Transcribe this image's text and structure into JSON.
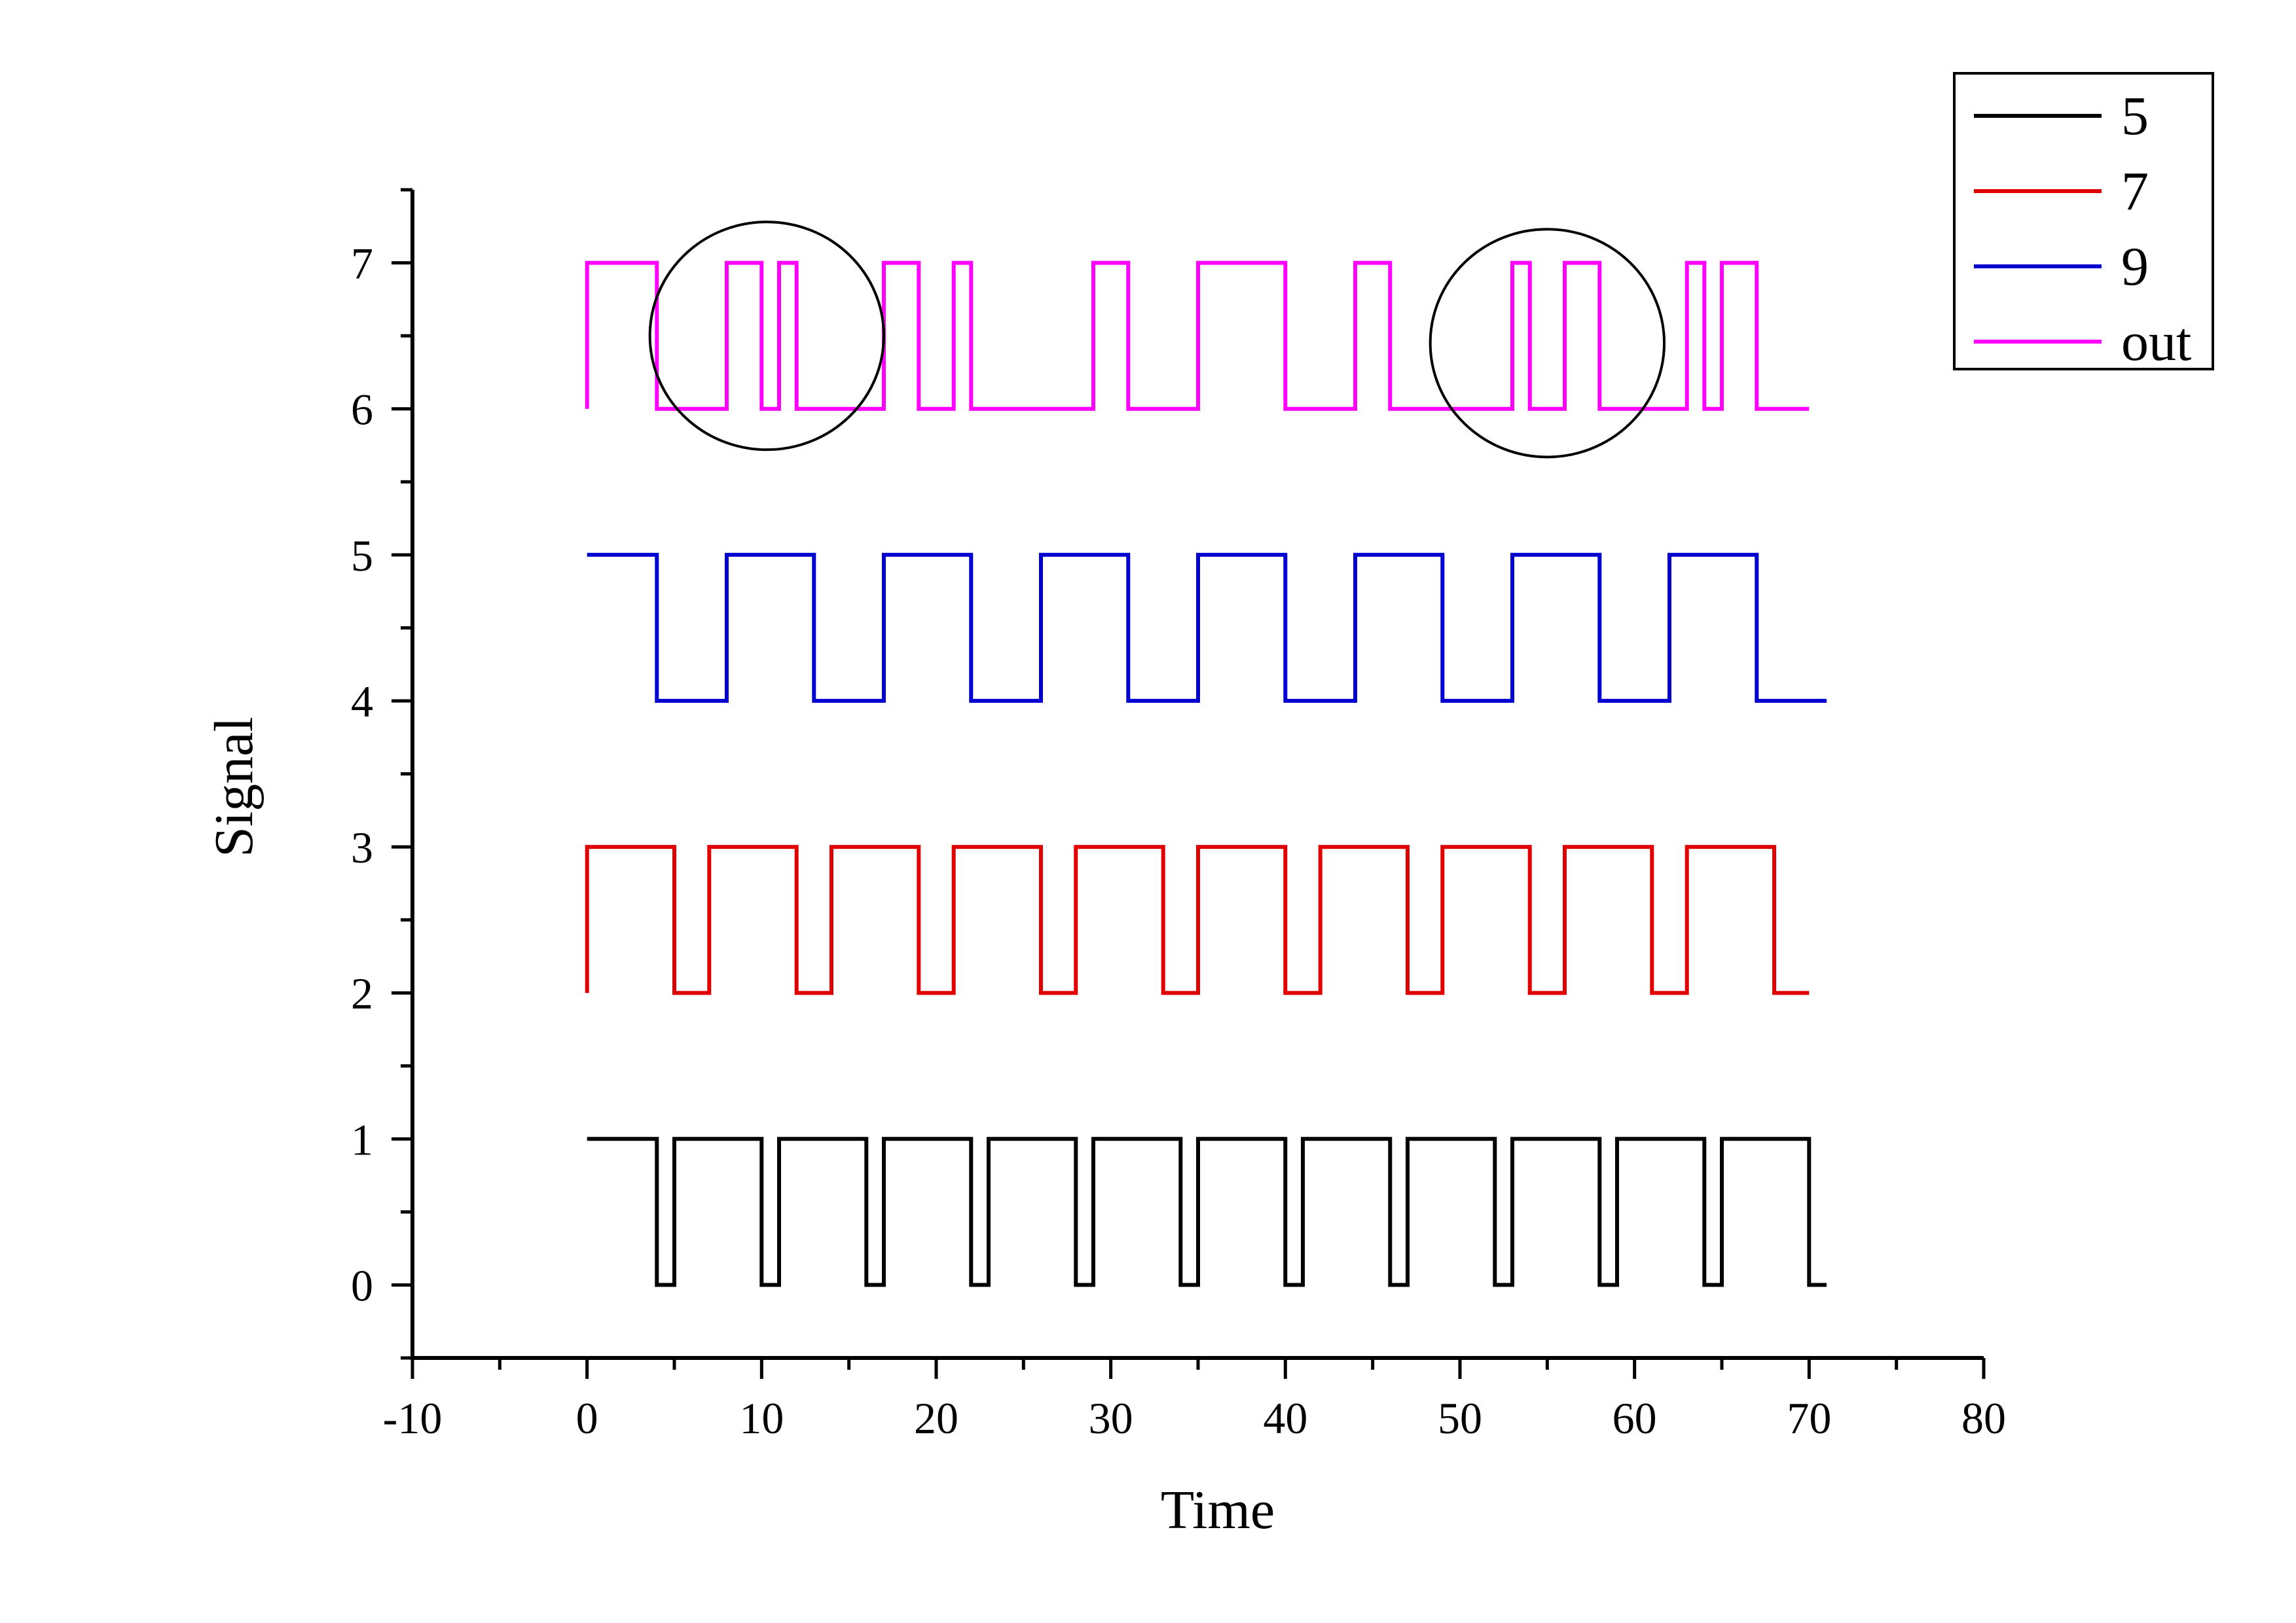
{
  "chart_data": {
    "type": "line",
    "step": true,
    "xlabel": "Time",
    "ylabel": "Signal",
    "xlim": [
      -10,
      80
    ],
    "ylim": [
      -0.5,
      7.5
    ],
    "xticks": [
      -10,
      0,
      10,
      20,
      30,
      40,
      50,
      60,
      70,
      80
    ],
    "xtick_labels": [
      "-10",
      "0",
      "10",
      "20",
      "30",
      "40",
      "50",
      "60",
      "70",
      "80"
    ],
    "yticks": [
      0,
      1,
      2,
      3,
      4,
      5,
      6,
      7
    ],
    "ytick_labels": [
      "0",
      "1",
      "2",
      "3",
      "4",
      "5",
      "6",
      "7"
    ],
    "legend_position": "top-right",
    "series": [
      {
        "name": "5",
        "color": "#000000",
        "x": [
          0,
          4,
          4,
          5,
          5,
          10,
          10,
          11,
          11,
          16,
          16,
          17,
          17,
          22,
          22,
          23,
          23,
          28,
          28,
          29,
          29,
          34,
          34,
          35,
          35,
          40,
          40,
          41,
          41,
          46,
          46,
          47,
          47,
          52,
          52,
          53,
          53,
          58,
          58,
          59,
          59,
          64,
          64,
          65,
          65,
          70,
          70,
          71
        ],
        "y": [
          1,
          1,
          0,
          0,
          1,
          1,
          0,
          0,
          1,
          1,
          0,
          0,
          1,
          1,
          0,
          0,
          1,
          1,
          0,
          0,
          1,
          1,
          0,
          0,
          1,
          1,
          0,
          0,
          1,
          1,
          0,
          0,
          1,
          1,
          0,
          0,
          1,
          1,
          0,
          0,
          1,
          1,
          0,
          0,
          1,
          1,
          0,
          0
        ]
      },
      {
        "name": "7",
        "color": "#e00000",
        "x": [
          0,
          0,
          5,
          5,
          7,
          7,
          12,
          12,
          14,
          14,
          19,
          19,
          21,
          21,
          26,
          26,
          28,
          28,
          33,
          33,
          35,
          35,
          40,
          40,
          42,
          42,
          47,
          47,
          49,
          49,
          54,
          54,
          56,
          56,
          61,
          61,
          63,
          63,
          68,
          68,
          70
        ],
        "y": [
          2,
          3,
          3,
          2,
          2,
          3,
          3,
          2,
          2,
          3,
          3,
          2,
          2,
          3,
          3,
          2,
          2,
          3,
          3,
          2,
          2,
          3,
          3,
          2,
          2,
          3,
          3,
          2,
          2,
          3,
          3,
          2,
          2,
          3,
          3,
          2,
          2,
          3,
          3,
          2,
          2
        ]
      },
      {
        "name": "9",
        "color": "#0000d0",
        "x": [
          0,
          4,
          4,
          8,
          8,
          13,
          13,
          17,
          17,
          22,
          22,
          26,
          26,
          31,
          31,
          35,
          35,
          40,
          40,
          44,
          44,
          49,
          49,
          53,
          53,
          58,
          58,
          62,
          62,
          67,
          67,
          71
        ],
        "y": [
          5,
          5,
          4,
          4,
          5,
          5,
          4,
          4,
          5,
          5,
          4,
          4,
          5,
          5,
          4,
          4,
          5,
          5,
          4,
          4,
          5,
          5,
          4,
          4,
          5,
          5,
          4,
          4,
          5,
          5,
          4,
          4
        ]
      },
      {
        "name": "out",
        "color": "#ff00ff",
        "x": [
          0,
          0,
          4,
          4,
          8,
          8,
          10,
          10,
          11,
          11,
          12,
          12,
          17,
          17,
          19,
          19,
          21,
          21,
          22,
          22,
          29,
          29,
          31,
          31,
          35,
          35,
          40,
          40,
          44,
          44,
          46,
          46,
          53,
          53,
          54,
          54,
          56,
          56,
          58,
          58,
          63,
          63,
          64,
          64,
          65,
          65,
          67,
          67,
          70
        ],
        "y": [
          6,
          7,
          7,
          6,
          6,
          7,
          7,
          6,
          6,
          7,
          7,
          6,
          6,
          7,
          7,
          6,
          6,
          7,
          7,
          6,
          6,
          7,
          7,
          6,
          6,
          7,
          7,
          6,
          6,
          7,
          7,
          6,
          6,
          7,
          7,
          6,
          6,
          7,
          7,
          6,
          6,
          7,
          7,
          6,
          6,
          7,
          7,
          6,
          6
        ]
      }
    ],
    "annotations": [
      {
        "type": "circle",
        "center": [
          10.3,
          6.5
        ],
        "radius_x": 6.7,
        "radius_y": 0.78,
        "color": "#000000"
      },
      {
        "type": "circle",
        "center": [
          55,
          6.45
        ],
        "radius_x": 6.7,
        "radius_y": 0.78,
        "color": "#000000"
      }
    ]
  }
}
